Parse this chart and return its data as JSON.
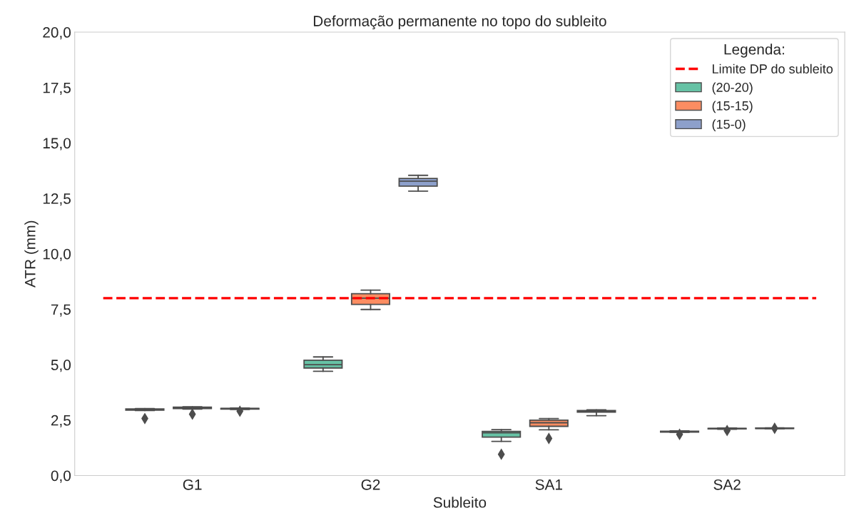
{
  "chart_data": {
    "type": "box",
    "title": "Deformação permanente no topo do subleito",
    "xlabel": "Subleito",
    "ylabel": "ATR (mm)",
    "legend_title": "Legenda:",
    "categories": [
      "G1",
      "G2",
      "SA1",
      "SA2"
    ],
    "series": [
      {
        "name": "(20-20)",
        "color": "#66c2a5",
        "boxes": [
          {
            "low": 2.93,
            "q1": 2.95,
            "median": 2.98,
            "q3": 3.0,
            "high": 3.02,
            "outliers": [
              2.57
            ]
          },
          {
            "low": 4.7,
            "q1": 4.85,
            "median": 5.0,
            "q3": 5.2,
            "high": 5.35
          },
          {
            "low": 1.54,
            "q1": 1.73,
            "median": 1.93,
            "q3": 1.99,
            "high": 2.07,
            "outliers": [
              0.96
            ]
          },
          {
            "low": 1.95,
            "q1": 1.96,
            "median": 1.98,
            "q3": 2.0,
            "high": 2.01,
            "outliers": [
              1.86
            ]
          }
        ]
      },
      {
        "name": "(15-15)",
        "color": "#fc8d62",
        "boxes": [
          {
            "low": 3.0,
            "q1": 3.02,
            "median": 3.05,
            "q3": 3.08,
            "high": 3.1,
            "outliers": [
              2.77
            ]
          },
          {
            "low": 7.49,
            "q1": 7.72,
            "median": 8.0,
            "q3": 8.2,
            "high": 8.36
          },
          {
            "low": 2.06,
            "q1": 2.22,
            "median": 2.38,
            "q3": 2.5,
            "high": 2.57,
            "outliers": [
              1.67
            ]
          },
          {
            "low": 2.09,
            "q1": 2.1,
            "median": 2.12,
            "q3": 2.13,
            "high": 2.14,
            "outliers": [
              2.03
            ]
          }
        ]
      },
      {
        "name": "(15-0)",
        "color": "#8da0cb",
        "boxes": [
          {
            "low": 2.98,
            "q1": 3.0,
            "median": 3.02,
            "q3": 3.03,
            "high": 3.04,
            "outliers": [
              2.9
            ]
          },
          {
            "low": 12.83,
            "q1": 13.05,
            "median": 13.28,
            "q3": 13.4,
            "high": 13.54
          },
          {
            "low": 2.7,
            "q1": 2.86,
            "median": 2.89,
            "q3": 2.93,
            "high": 2.96
          },
          {
            "low": 2.11,
            "q1": 2.12,
            "median": 2.13,
            "q3": 2.14,
            "high": 2.15,
            "outliers": [
              2.13
            ]
          }
        ]
      }
    ],
    "ylim": [
      0,
      20
    ],
    "yticks": [
      {
        "value": 0,
        "label": "0,0"
      },
      {
        "value": 2.5,
        "label": "2,5"
      },
      {
        "value": 5,
        "label": "5,0"
      },
      {
        "value": 7.5,
        "label": "7,5"
      },
      {
        "value": 10,
        "label": "10,0"
      },
      {
        "value": 12.5,
        "label": "12,5"
      },
      {
        "value": 15,
        "label": "15,0"
      },
      {
        "value": 17.5,
        "label": "17,5"
      },
      {
        "value": 20,
        "label": "20,0"
      }
    ],
    "ref_lines": [
      {
        "axis": "y",
        "value": 8,
        "label": "Limite DP do subleito",
        "color": "#ff0000",
        "line_style": "dashed"
      }
    ],
    "grid": false,
    "legend": "top right",
    "marker": "diamond"
  }
}
